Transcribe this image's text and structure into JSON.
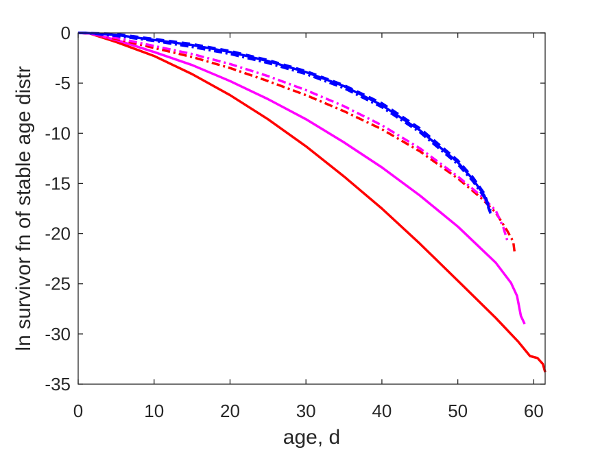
{
  "chart_data": {
    "type": "line",
    "title": "",
    "xlabel": "age, d",
    "ylabel": "ln survivor fn of stable age distr",
    "xlim": [
      0,
      61.5
    ],
    "ylim": [
      -35,
      0
    ],
    "xticks": [
      0,
      10,
      20,
      30,
      40,
      50,
      60
    ],
    "yticks": [
      0,
      -5,
      -10,
      -15,
      -20,
      -25,
      -30,
      -35
    ],
    "grid": false,
    "legend": null,
    "series": [
      {
        "color": "#ff0000",
        "dash": "solid",
        "x": [
          0,
          1.5,
          5,
          10,
          15,
          20,
          25,
          30,
          35,
          40,
          45,
          50,
          55,
          58,
          59.5,
          60.5,
          61.2,
          61.5
        ],
        "y": [
          0,
          -0.05,
          -0.9,
          -2.3,
          -4.1,
          -6.2,
          -8.6,
          -11.3,
          -14.3,
          -17.5,
          -21.0,
          -24.7,
          -28.4,
          -30.8,
          -32.2,
          -32.4,
          -33.0,
          -33.8
        ]
      },
      {
        "color": "#ff00ff",
        "dash": "solid",
        "x": [
          0,
          1.5,
          5,
          10,
          15,
          20,
          25,
          30,
          35,
          40,
          45,
          50,
          55,
          57,
          57.8,
          58.3,
          58.8
        ],
        "y": [
          0,
          -0.05,
          -0.7,
          -1.9,
          -3.2,
          -4.8,
          -6.6,
          -8.6,
          -10.9,
          -13.4,
          -16.2,
          -19.3,
          -22.9,
          -24.9,
          -26.2,
          -28.2,
          -29.0
        ]
      },
      {
        "color": "#ff0000",
        "dash": "dashdot",
        "x": [
          0,
          1.5,
          5,
          10,
          15,
          20,
          25,
          30,
          35,
          40,
          45,
          50,
          53,
          55,
          56.5,
          57.3,
          57.5
        ],
        "y": [
          0,
          -0.05,
          -0.6,
          -1.5,
          -2.4,
          -3.5,
          -4.8,
          -6.2,
          -7.8,
          -9.6,
          -11.8,
          -14.5,
          -16.4,
          -17.9,
          -19.7,
          -20.8,
          -22.0
        ]
      },
      {
        "color": "#ff00ff",
        "dash": "dashdot",
        "x": [
          0,
          1.5,
          5,
          10,
          15,
          20,
          25,
          30,
          35,
          40,
          45,
          50,
          53,
          55,
          56,
          56.6
        ],
        "y": [
          0,
          -0.05,
          -0.5,
          -1.3,
          -2.1,
          -3.1,
          -4.3,
          -5.7,
          -7.3,
          -9.2,
          -11.5,
          -14.3,
          -16.2,
          -17.7,
          -19.4,
          -20.9
        ]
      },
      {
        "color": "#0000ff",
        "dash": "solid",
        "x": [
          0,
          1,
          5,
          10,
          15,
          20,
          25,
          30,
          35,
          40,
          45,
          50,
          52,
          53.5,
          54.3
        ],
        "y": [
          0,
          0,
          -0.2,
          -0.7,
          -1.2,
          -1.9,
          -2.8,
          -3.9,
          -5.3,
          -7.2,
          -9.7,
          -12.9,
          -14.6,
          -16.2,
          -17.9
        ]
      },
      {
        "color": "#0000ff",
        "dash": "dashdot",
        "x": [
          0,
          1,
          5,
          10,
          15,
          20,
          25,
          30,
          35,
          40,
          45,
          50,
          52,
          53.5,
          54.3
        ],
        "y": [
          0,
          0,
          -0.3,
          -0.8,
          -1.4,
          -2.1,
          -3.0,
          -4.1,
          -5.5,
          -7.4,
          -9.9,
          -13.1,
          -14.8,
          -16.4,
          -18.0
        ]
      },
      {
        "color": "#0000ff",
        "dash": "dashed",
        "x": [
          0,
          1,
          5,
          10,
          15,
          20,
          25,
          30,
          35,
          40,
          45,
          50,
          52,
          53.5,
          54.3
        ],
        "y": [
          0,
          0,
          -0.1,
          -0.6,
          -1.1,
          -1.8,
          -2.7,
          -3.8,
          -5.2,
          -7.0,
          -9.5,
          -12.7,
          -14.4,
          -16.0,
          -17.7
        ]
      }
    ]
  }
}
